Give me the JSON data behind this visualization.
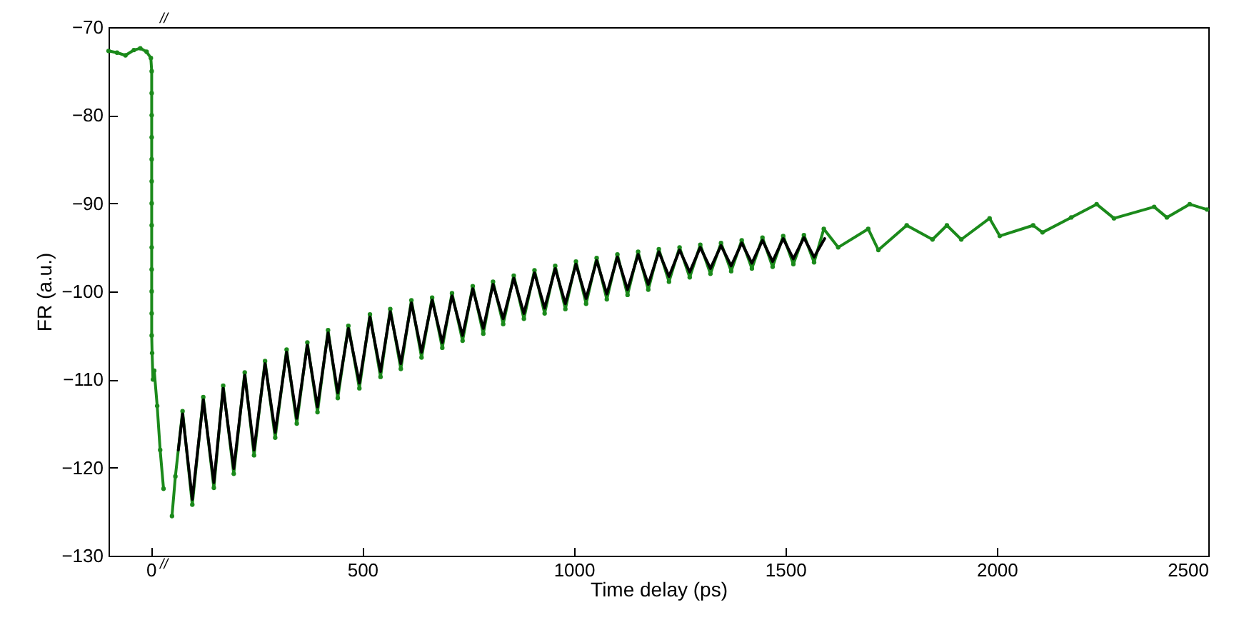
{
  "chart_data": {
    "type": "line",
    "xlabel": "Time delay (ps)",
    "ylabel": "FR (a.u.)",
    "xlim": [
      -100,
      2500
    ],
    "ylim": [
      -130,
      -70
    ],
    "xticks": [
      0,
      500,
      1000,
      1500,
      2000,
      2500
    ],
    "yticks": [
      -130,
      -120,
      -110,
      -100,
      -90,
      -80,
      -70
    ],
    "annotations": [
      "//",
      "//"
    ],
    "series": [
      {
        "marker": "circle",
        "color": "#1b8a1b",
        "x": [
          -100,
          -80,
          -60,
          -40,
          -25,
          -10,
          0,
          2,
          2,
          2,
          2,
          2,
          2,
          2,
          2,
          2,
          2,
          2,
          2,
          2,
          3,
          5,
          8,
          15,
          22,
          30,
          40,
          50,
          58,
          75,
          98,
          124,
          149,
          171,
          196,
          222,
          244,
          270,
          294,
          321,
          345,
          370,
          394,
          419,
          442,
          467,
          493,
          518,
          543,
          566,
          591,
          616,
          640,
          665,
          689,
          712,
          737,
          761,
          786,
          809,
          833,
          858,
          882,
          907,
          931,
          956,
          980,
          1005,
          1029,
          1054,
          1078,
          1103,
          1127,
          1152,
          1176,
          1201,
          1225,
          1250,
          1274,
          1299,
          1323,
          1348,
          1372,
          1397,
          1421,
          1446,
          1470,
          1495,
          1519,
          1544,
          1568,
          1591,
          1625,
          1696,
          1720,
          1787,
          1848,
          1882,
          1916,
          1983,
          2007,
          2086,
          2108,
          2176,
          2236,
          2277,
          2372,
          2402,
          2456,
          2497
        ],
        "values": [
          -72.7,
          -72.9,
          -73.2,
          -72.6,
          -72.4,
          -72.8,
          -73.5,
          -75,
          -77.5,
          -80,
          -82.5,
          -85,
          -87.5,
          -90,
          -92.5,
          -95,
          -97.5,
          -100,
          -102.5,
          -105,
          -107,
          -110,
          -109,
          -113,
          -118,
          -122.4,
          null,
          -125.5,
          -121,
          -113.6,
          -124.2,
          -112,
          -122.3,
          -110.7,
          -120.7,
          -109.2,
          -118.6,
          -107.9,
          -116.6,
          -106.6,
          -115,
          -105.8,
          -113.7,
          -104.4,
          -112.1,
          -103.9,
          -111,
          -102.6,
          -109.7,
          -102,
          -108.8,
          -101,
          -107.5,
          -100.7,
          -106.4,
          -100.2,
          -105.6,
          -99.4,
          -104.8,
          -98.9,
          -103.7,
          -98.2,
          -103.1,
          -97.6,
          -102.5,
          -97.1,
          -102,
          -96.6,
          -101.4,
          -96.2,
          -100.9,
          -95.8,
          -100.4,
          -95.5,
          -99.8,
          -95.2,
          -98.9,
          -95,
          -98.4,
          -94.7,
          -98,
          -94.5,
          -97.7,
          -94.2,
          -97.4,
          -93.9,
          -97.2,
          -93.7,
          -96.9,
          -93.6,
          -96.7,
          -92.9,
          -95,
          -92.9,
          -95.3,
          -92.5,
          -94.1,
          -92.5,
          -94.1,
          -91.7,
          -93.7,
          -92.5,
          -93.3,
          -91.6,
          -90.1,
          -91.7,
          -90.4,
          -91.6,
          -90.1,
          -90.7
        ]
      },
      {
        "marker": "none",
        "color": "#000000",
        "x": [
          65,
          75,
          98,
          124,
          149,
          171,
          196,
          222,
          244,
          270,
          294,
          321,
          345,
          370,
          394,
          419,
          442,
          467,
          493,
          518,
          543,
          566,
          591,
          616,
          640,
          665,
          689,
          712,
          737,
          761,
          786,
          809,
          833,
          858,
          882,
          907,
          931,
          956,
          980,
          1005,
          1029,
          1054,
          1078,
          1103,
          1127,
          1152,
          1176,
          1201,
          1225,
          1250,
          1274,
          1299,
          1323,
          1348,
          1372,
          1397,
          1421,
          1446,
          1470,
          1495,
          1519,
          1544,
          1568,
          1593
        ],
        "values": [
          -118,
          -113.9,
          -123.6,
          -112.3,
          -121.7,
          -111,
          -120.1,
          -109.5,
          -118,
          -108.2,
          -116,
          -106.9,
          -114.4,
          -106.1,
          -113.1,
          -104.7,
          -111.5,
          -104.2,
          -110.4,
          -102.9,
          -109.1,
          -102.3,
          -108.2,
          -101.3,
          -106.9,
          -101,
          -105.8,
          -100.5,
          -105,
          -99.7,
          -104.2,
          -99.2,
          -103.1,
          -98.5,
          -102.5,
          -97.9,
          -101.9,
          -97.4,
          -101.4,
          -96.9,
          -100.8,
          -96.5,
          -100.3,
          -96.1,
          -99.8,
          -95.8,
          -99.2,
          -95.5,
          -98.3,
          -95.3,
          -97.8,
          -95,
          -97.4,
          -94.8,
          -97.1,
          -94.5,
          -96.8,
          -94.2,
          -96.6,
          -94,
          -96.3,
          -93.9,
          -96.1,
          -94
        ]
      }
    ]
  }
}
